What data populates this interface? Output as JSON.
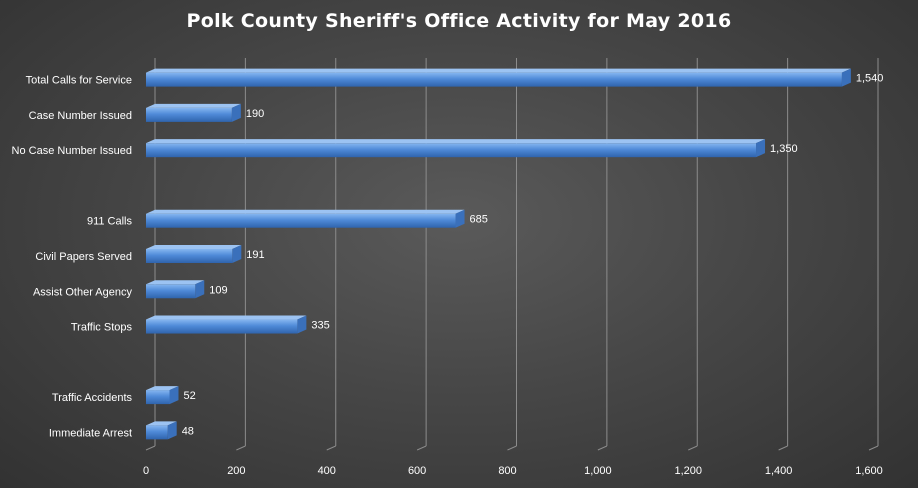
{
  "chart_data": {
    "type": "bar",
    "orientation": "horizontal",
    "title": "Polk County Sheriff's Office Activity for May 2016",
    "xlabel": "",
    "ylabel": "",
    "categories": [
      "Total Calls for Service",
      "Case Number Issued",
      "No Case Number Issued",
      "",
      "911 Calls",
      "Civil Papers Served",
      "Assist Other Agency",
      "Traffic Stops",
      "",
      "Traffic Accidents",
      "Immediate Arrest"
    ],
    "values": [
      1540,
      190,
      1350,
      null,
      685,
      191,
      109,
      335,
      null,
      52,
      48
    ],
    "data_labels": [
      "1,540",
      "190",
      "1,350",
      "",
      "685",
      "191",
      "109",
      "335",
      "",
      "52",
      "48"
    ],
    "xlim": [
      0,
      1600
    ],
    "xticks": [
      0,
      200,
      400,
      600,
      800,
      1000,
      1200,
      1400,
      1600
    ],
    "xtick_labels": [
      "0",
      "200",
      "400",
      "600",
      "800",
      "1,000",
      "1,200",
      "1,400",
      "1,600"
    ],
    "grid": true,
    "legend": "none",
    "colors": {
      "bar": "#4f8ad8",
      "bar_light": "#86b6f0",
      "bar_dark": "#2f64ad",
      "bar_top": "#9cc3f2",
      "bar_side": "#3a70bb",
      "grid": "#8c8c8c",
      "text": "#ffffff"
    }
  }
}
